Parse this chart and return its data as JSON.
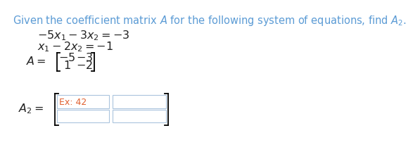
{
  "title_text": "Given the coefficient matrix $\\mathit{A}$ for the following system of equations, find $A_2$.",
  "eq1": "$-5x_1 - 3x_2 = -3$",
  "eq2": "$x_1 - 2x_2 = -1$",
  "matrix_A_label": "$A =$",
  "matrix_A2_label": "$A_2 =$",
  "placeholder_text": "Ex: 42",
  "bg_color": "#ffffff",
  "title_color": "#5B9BD5",
  "eq_color": "#222222",
  "box_border_color": "#aac4dd",
  "placeholder_color": "#E06030",
  "font_size_title": 10.5,
  "font_size_eq": 11.5,
  "font_size_matrix": 11.5,
  "font_size_placeholder": 9
}
